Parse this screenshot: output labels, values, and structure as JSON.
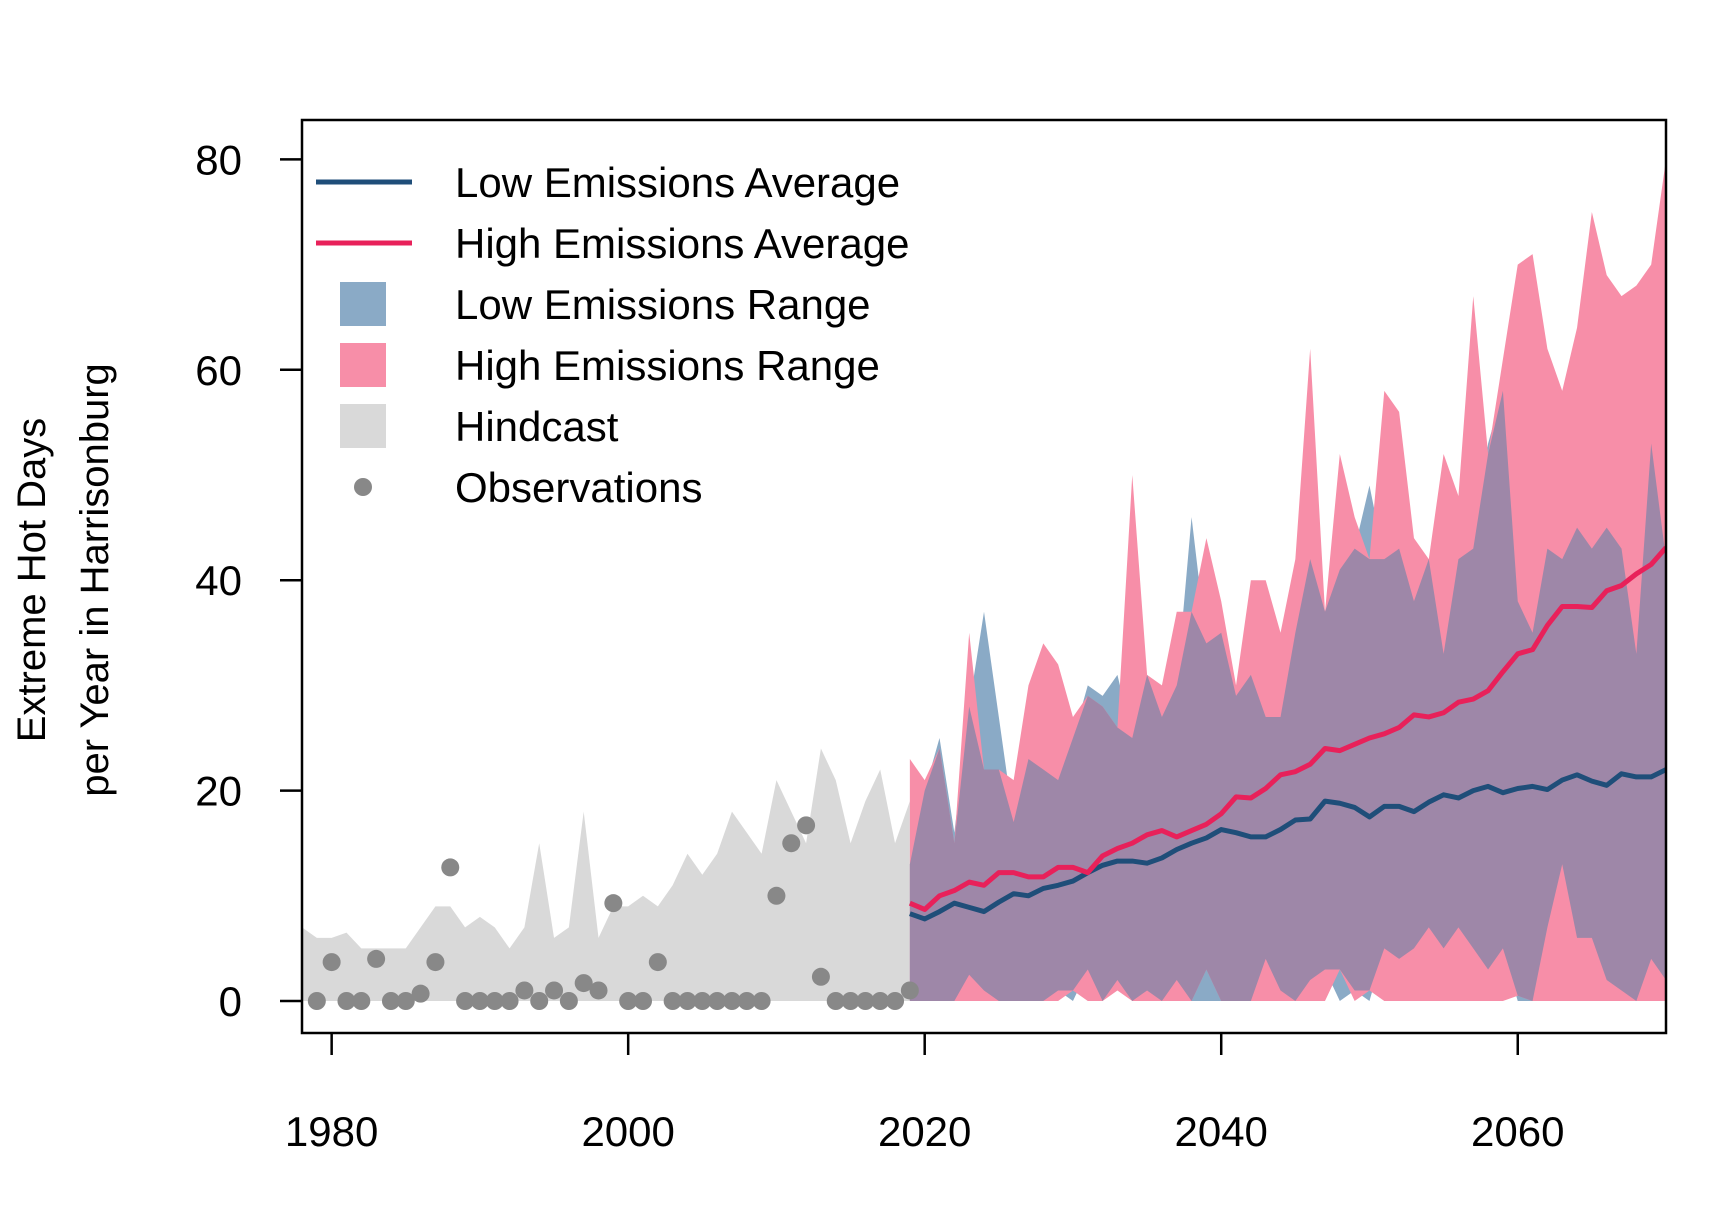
{
  "colors": {
    "low_line": "#1f4e79",
    "high_line": "#e8215a",
    "low_range": "#8aaac6",
    "high_range": "#f78ea8",
    "overlap": "#9e87a8",
    "hindcast": "#d9d9d9",
    "observations": "#888888"
  },
  "chart_data": {
    "type": "line",
    "title": "",
    "xlabel": "",
    "ylabel_lines": [
      "Extreme Hot Days",
      "per Year in Harrisonburg"
    ],
    "xlim": [
      1978,
      2070
    ],
    "ylim": [
      -3,
      84
    ],
    "x_ticks": [
      1980,
      2000,
      2020,
      2040,
      2060
    ],
    "y_ticks": [
      0,
      20,
      40,
      60,
      80
    ],
    "grid": false,
    "legend_position": "top-left",
    "legend": [
      {
        "label": "Low Emissions Average",
        "kind": "line",
        "color_key": "low_line"
      },
      {
        "label": "High Emissions Average",
        "kind": "line",
        "color_key": "high_line"
      },
      {
        "label": "Low Emissions Range",
        "kind": "box",
        "color_key": "low_range"
      },
      {
        "label": "High Emissions Range",
        "kind": "box",
        "color_key": "high_range"
      },
      {
        "label": "Hindcast",
        "kind": "box",
        "color_key": "hindcast"
      },
      {
        "label": "Observations",
        "kind": "point",
        "color_key": "observations"
      }
    ],
    "observations": {
      "name": "Observations",
      "x": [
        1979,
        1980,
        1981,
        1982,
        1983,
        1984,
        1985,
        1986,
        1987,
        1988,
        1989,
        1990,
        1991,
        1992,
        1993,
        1994,
        1995,
        1996,
        1997,
        1998,
        1999,
        2000,
        2001,
        2002,
        2003,
        2004,
        2005,
        2006,
        2007,
        2008,
        2009,
        2010,
        2011,
        2012,
        2013,
        2014,
        2015,
        2016,
        2017,
        2018,
        2019
      ],
      "y": [
        0,
        3.7,
        0,
        0,
        4,
        0,
        0,
        0.7,
        3.7,
        12.7,
        0,
        0,
        0,
        0,
        1,
        0,
        1,
        0,
        1.7,
        1,
        9.3,
        0,
        0,
        3.7,
        0,
        0,
        0,
        0,
        0,
        0,
        0,
        10,
        15,
        16.7,
        2.3,
        0,
        0,
        0,
        0,
        0,
        1
      ]
    },
    "hindcast": {
      "name": "Hindcast",
      "x": [
        1978,
        1979,
        1980,
        1981,
        1982,
        1983,
        1984,
        1985,
        1986,
        1987,
        1988,
        1989,
        1990,
        1991,
        1992,
        1993,
        1994,
        1995,
        1996,
        1997,
        1998,
        1999,
        2000,
        2001,
        2002,
        2003,
        2004,
        2005,
        2006,
        2007,
        2008,
        2009,
        2010,
        2011,
        2012,
        2013,
        2014,
        2015,
        2016,
        2017,
        2018,
        2019
      ],
      "upper": [
        7,
        6,
        6,
        6.5,
        5,
        5,
        5,
        5,
        7,
        9,
        9,
        7,
        8,
        7,
        5,
        7,
        15,
        6,
        7,
        18,
        6,
        9,
        9,
        10,
        9,
        11,
        14,
        12,
        14,
        18,
        16,
        14,
        21,
        18,
        15,
        24,
        21,
        15,
        19,
        22,
        15,
        19
      ],
      "lower": [
        0,
        0,
        0,
        0,
        0,
        0,
        0,
        0,
        0,
        0,
        0,
        0,
        0,
        0,
        0,
        0,
        0,
        0,
        0,
        0,
        0,
        0,
        0,
        0,
        0,
        0,
        0,
        0,
        0,
        0,
        0,
        0,
        0,
        0,
        0,
        0,
        0,
        0,
        0,
        0,
        0,
        0
      ]
    },
    "series": [
      {
        "name": "Low Emissions Average",
        "x": [
          2019,
          2020,
          2021,
          2022,
          2023,
          2024,
          2025,
          2026,
          2027,
          2028,
          2029,
          2030,
          2031,
          2032,
          2033,
          2034,
          2035,
          2036,
          2037,
          2038,
          2039,
          2040,
          2041,
          2042,
          2043,
          2044,
          2045,
          2046,
          2047,
          2048,
          2049,
          2050,
          2051,
          2052,
          2053,
          2054,
          2055,
          2056,
          2057,
          2058,
          2059,
          2060,
          2061,
          2062,
          2063,
          2064,
          2065,
          2066,
          2067,
          2068,
          2069,
          2070
        ],
        "y": [
          8.3,
          7.8,
          8.5,
          9.3,
          8.9,
          8.5,
          9.4,
          10.2,
          10.0,
          10.7,
          11.0,
          11.4,
          12.2,
          12.9,
          13.3,
          13.3,
          13.1,
          13.6,
          14.4,
          15.0,
          15.5,
          16.3,
          16.0,
          15.6,
          15.6,
          16.3,
          17.2,
          17.3,
          19.0,
          18.8,
          18.4,
          17.5,
          18.5,
          18.5,
          18.0,
          18.9,
          19.6,
          19.3,
          20.0,
          20.4,
          19.8,
          20.2,
          20.4,
          20.1,
          21.0,
          21.5,
          20.9,
          20.5,
          21.6,
          21.3,
          21.3,
          22.0
        ]
      },
      {
        "name": "High Emissions Average",
        "x": [
          2019,
          2020,
          2021,
          2022,
          2023,
          2024,
          2025,
          2026,
          2027,
          2028,
          2029,
          2030,
          2031,
          2032,
          2033,
          2034,
          2035,
          2036,
          2037,
          2038,
          2039,
          2040,
          2041,
          2042,
          2043,
          2044,
          2045,
          2046,
          2047,
          2048,
          2049,
          2050,
          2051,
          2052,
          2053,
          2054,
          2055,
          2056,
          2057,
          2058,
          2059,
          2060,
          2061,
          2062,
          2063,
          2064,
          2065,
          2066,
          2067,
          2068,
          2069,
          2070
        ],
        "y": [
          9.3,
          8.7,
          10.0,
          10.5,
          11.3,
          11.0,
          12.2,
          12.2,
          11.8,
          11.8,
          12.7,
          12.7,
          12.2,
          13.8,
          14.5,
          15.0,
          15.8,
          16.2,
          15.6,
          16.2,
          16.8,
          17.8,
          19.4,
          19.3,
          20.2,
          21.5,
          21.8,
          22.5,
          24.0,
          23.8,
          24.4,
          25.0,
          25.4,
          26.0,
          27.2,
          27.0,
          27.4,
          28.4,
          28.7,
          29.5,
          31.3,
          33.0,
          33.4,
          35.7,
          37.5,
          37.5,
          37.4,
          39.0,
          39.5,
          40.6,
          41.5,
          43.1
        ]
      },
      {
        "name": "Low Emissions Range",
        "x": [
          2019,
          2020,
          2021,
          2022,
          2023,
          2024,
          2025,
          2026,
          2027,
          2028,
          2029,
          2030,
          2031,
          2032,
          2033,
          2034,
          2035,
          2036,
          2037,
          2038,
          2039,
          2040,
          2041,
          2042,
          2043,
          2044,
          2045,
          2046,
          2047,
          2048,
          2049,
          2050,
          2051,
          2052,
          2053,
          2054,
          2055,
          2056,
          2057,
          2058,
          2059,
          2060,
          2061,
          2062,
          2063,
          2064,
          2065,
          2066,
          2067,
          2068,
          2069,
          2070
        ],
        "upper": [
          13,
          20,
          25,
          16,
          28,
          37,
          27,
          17,
          23,
          22,
          21,
          25,
          30,
          29,
          31,
          25,
          31,
          27,
          30,
          46,
          34,
          35,
          29,
          31,
          27,
          27,
          35,
          42,
          37,
          41,
          43,
          49,
          42,
          43,
          38,
          42,
          33,
          42,
          43,
          53,
          58,
          38,
          35,
          43,
          42,
          45,
          43,
          45,
          43,
          33,
          53,
          42
        ],
        "lower": [
          0,
          0,
          0,
          0,
          2.5,
          1,
          0,
          0,
          0,
          0,
          1,
          0,
          3,
          0,
          2,
          0,
          1,
          0,
          2,
          0,
          0,
          0,
          0,
          0,
          4,
          1,
          0,
          2,
          3,
          0,
          1,
          0,
          5,
          4,
          5,
          7,
          5,
          7,
          5,
          3,
          5,
          0,
          0,
          7,
          13,
          6,
          6,
          2,
          1,
          0,
          4,
          2
        ]
      },
      {
        "name": "High Emissions Range",
        "x": [
          2019,
          2020,
          2021,
          2022,
          2023,
          2024,
          2025,
          2026,
          2027,
          2028,
          2029,
          2030,
          2031,
          2032,
          2033,
          2034,
          2035,
          2036,
          2037,
          2038,
          2039,
          2040,
          2041,
          2042,
          2043,
          2044,
          2045,
          2046,
          2047,
          2048,
          2049,
          2050,
          2051,
          2052,
          2053,
          2054,
          2055,
          2056,
          2057,
          2058,
          2059,
          2060,
          2061,
          2062,
          2063,
          2064,
          2065,
          2066,
          2067,
          2068,
          2069,
          2070
        ],
        "upper": [
          23,
          21,
          24,
          15,
          35,
          22,
          22,
          21,
          30,
          34,
          32,
          27,
          29,
          28,
          26,
          50,
          31,
          30,
          37,
          37,
          44,
          38,
          30,
          40,
          40,
          35,
          42,
          62,
          37,
          52,
          46,
          42,
          58,
          56,
          44,
          42,
          52,
          48,
          67,
          52,
          61,
          70,
          71,
          62,
          58,
          64,
          75,
          69,
          67,
          68,
          70,
          80
        ],
        "lower": [
          0,
          0,
          0,
          0,
          0,
          0,
          0,
          0,
          0,
          0,
          0,
          1,
          0,
          0,
          1,
          0,
          0,
          0,
          0,
          0,
          3,
          0,
          0,
          0,
          0,
          0,
          0,
          0,
          0,
          3,
          0,
          1,
          0,
          0,
          0,
          0,
          0,
          0,
          0,
          0,
          0,
          0.5,
          0,
          0,
          0,
          0,
          0,
          0,
          0,
          0,
          0,
          0
        ]
      }
    ]
  }
}
